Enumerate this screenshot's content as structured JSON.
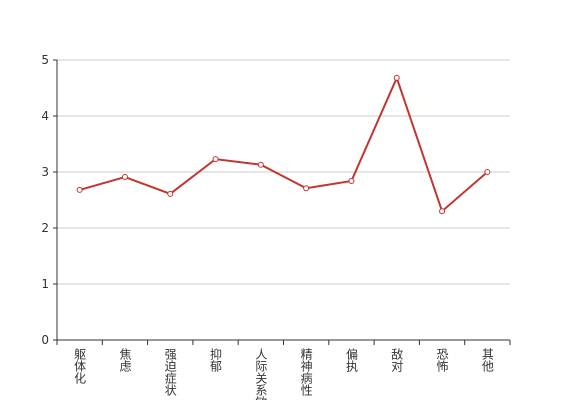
{
  "chart_data": {
    "type": "line",
    "categories": [
      "躯体化",
      "焦虑",
      "强迫症状",
      "抑郁",
      "人际关系敏感",
      "精神病性",
      "偏执",
      "敌对",
      "恐怖",
      "其他"
    ],
    "values": [
      2.68,
      2.91,
      2.61,
      3.23,
      3.13,
      2.71,
      2.84,
      4.68,
      2.3,
      3.0
    ],
    "color": "#c23531",
    "ylim": [
      0,
      5
    ],
    "yticks": [
      0,
      1,
      2,
      3,
      4,
      5
    ],
    "grid": true
  }
}
